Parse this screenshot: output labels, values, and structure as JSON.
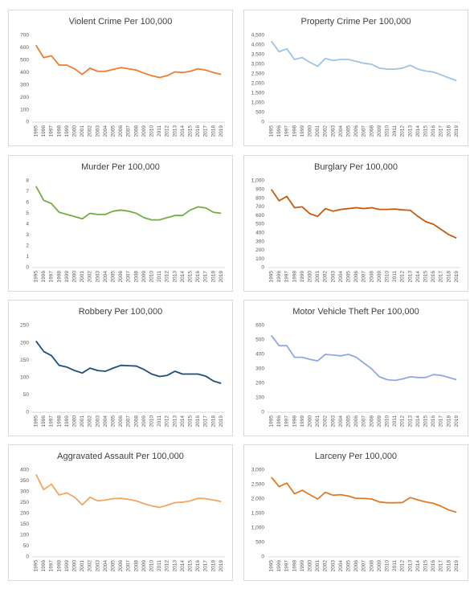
{
  "chart_data": [
    {
      "type": "line",
      "title": "Violent Crime Per 100,000",
      "color": "#ed7d31",
      "categories": [
        "1995",
        "1996",
        "1997",
        "1998",
        "1999",
        "2000",
        "2001",
        "2002",
        "2003",
        "2004",
        "2005",
        "2006",
        "2007",
        "2008",
        "2009",
        "2010",
        "2011",
        "2012",
        "2013",
        "2014",
        "2015",
        "2016",
        "2017",
        "2018",
        "2019"
      ],
      "values": [
        620,
        520,
        535,
        460,
        460,
        430,
        385,
        435,
        410,
        410,
        425,
        440,
        430,
        420,
        395,
        375,
        360,
        375,
        405,
        400,
        410,
        430,
        420,
        400,
        385
      ],
      "ylim": [
        0,
        700
      ],
      "yticks": [
        0,
        100,
        200,
        300,
        400,
        500,
        600,
        700
      ],
      "grid": false
    },
    {
      "type": "line",
      "title": "Property Crime Per 100,000",
      "color": "#9dc3e6",
      "categories": [
        "1995",
        "1996",
        "1997",
        "1998",
        "1999",
        "2000",
        "2001",
        "2002",
        "2003",
        "2004",
        "2005",
        "2006",
        "2007",
        "2008",
        "2009",
        "2010",
        "2011",
        "2012",
        "2013",
        "2014",
        "2015",
        "2016",
        "2017",
        "2018",
        "2019"
      ],
      "values": [
        4200,
        3650,
        3800,
        3250,
        3350,
        3100,
        2900,
        3300,
        3200,
        3250,
        3250,
        3150,
        3050,
        3000,
        2800,
        2750,
        2750,
        2800,
        2950,
        2750,
        2650,
        2600,
        2450,
        2300,
        2150
      ],
      "ylim": [
        0,
        4500
      ],
      "yticks": [
        0,
        500,
        {
          "value": 1000,
          "label": "1,000"
        },
        {
          "value": 1500,
          "label": "1,500"
        },
        {
          "value": 2000,
          "label": "2,000"
        },
        {
          "value": 2500,
          "label": "2,500"
        },
        {
          "value": 3000,
          "label": "3,000"
        },
        {
          "value": 3500,
          "label": "3,500"
        },
        {
          "value": 4000,
          "label": "4,000"
        },
        {
          "value": 4500,
          "label": "4,500"
        }
      ],
      "grid": false
    },
    {
      "type": "line",
      "title": "Murder Per 100,000",
      "color": "#70ad47",
      "categories": [
        "1995",
        "1996",
        "1997",
        "1998",
        "1999",
        "2000",
        "2001",
        "2002",
        "2003",
        "2004",
        "2005",
        "2006",
        "2007",
        "2008",
        "2009",
        "2010",
        "2011",
        "2012",
        "2013",
        "2014",
        "2015",
        "2016",
        "2017",
        "2018",
        "2019"
      ],
      "values": [
        7.5,
        6.2,
        5.9,
        5.1,
        4.9,
        4.7,
        4.5,
        5.0,
        4.9,
        4.9,
        5.2,
        5.3,
        5.2,
        5.0,
        4.6,
        4.4,
        4.4,
        4.6,
        4.8,
        4.8,
        5.3,
        5.6,
        5.5,
        5.1,
        5.0
      ],
      "ylim": [
        0,
        8
      ],
      "yticks": [
        0,
        1,
        2,
        3,
        4,
        5,
        6,
        7,
        8
      ],
      "grid": false
    },
    {
      "type": "line",
      "title": "Burglary Per 100,000",
      "color": "#c55a11",
      "categories": [
        "1995",
        "1996",
        "1997",
        "1998",
        "1999",
        "2000",
        "2001",
        "2002",
        "2003",
        "2004",
        "2005",
        "2006",
        "2007",
        "2008",
        "2009",
        "2010",
        "2011",
        "2012",
        "2013",
        "2014",
        "2015",
        "2016",
        "2017",
        "2018",
        "2019"
      ],
      "values": [
        900,
        770,
        820,
        690,
        700,
        620,
        590,
        680,
        650,
        670,
        680,
        690,
        680,
        690,
        670,
        670,
        675,
        665,
        660,
        590,
        530,
        500,
        440,
        380,
        340
      ],
      "ylim": [
        0,
        1000
      ],
      "yticks": [
        0,
        100,
        200,
        300,
        400,
        500,
        600,
        700,
        800,
        900,
        {
          "value": 1000,
          "label": "1,000"
        }
      ],
      "grid": false
    },
    {
      "type": "line",
      "title": "Robbery Per 100,000",
      "color": "#1f4e79",
      "categories": [
        "1995",
        "1996",
        "1997",
        "1998",
        "1999",
        "2000",
        "2001",
        "2002",
        "2003",
        "2004",
        "2005",
        "2006",
        "2007",
        "2008",
        "2009",
        "2010",
        "2011",
        "2012",
        "2013",
        "2014",
        "2015",
        "2016",
        "2017",
        "2018",
        "2019"
      ],
      "values": [
        205,
        175,
        163,
        135,
        130,
        120,
        113,
        127,
        120,
        118,
        127,
        135,
        134,
        133,
        123,
        110,
        103,
        106,
        118,
        110,
        110,
        110,
        104,
        90,
        83
      ],
      "ylim": [
        0,
        250
      ],
      "yticks": [
        0,
        50,
        100,
        150,
        200,
        250
      ],
      "grid": false
    },
    {
      "type": "line",
      "title": "Motor Vehicle Theft Per 100,000",
      "color": "#8faadc",
      "categories": [
        "1995",
        "1996",
        "1997",
        "1998",
        "1999",
        "2000",
        "2001",
        "2002",
        "2003",
        "2004",
        "2005",
        "2006",
        "2007",
        "2008",
        "2009",
        "2010",
        "2011",
        "2012",
        "2013",
        "2014",
        "2015",
        "2016",
        "2017",
        "2018",
        "2019"
      ],
      "values": [
        530,
        460,
        460,
        380,
        380,
        365,
        355,
        400,
        395,
        390,
        400,
        380,
        340,
        300,
        245,
        225,
        220,
        230,
        245,
        240,
        240,
        260,
        255,
        240,
        225
      ],
      "ylim": [
        0,
        600
      ],
      "yticks": [
        0,
        100,
        200,
        300,
        400,
        500,
        600
      ],
      "grid": false
    },
    {
      "type": "line",
      "title": "Aggravated Assault Per 100,000",
      "color": "#f4a460",
      "categories": [
        "1995",
        "1996",
        "1997",
        "1998",
        "1999",
        "2000",
        "2001",
        "2002",
        "2003",
        "2004",
        "2005",
        "2006",
        "2007",
        "2008",
        "2009",
        "2010",
        "2011",
        "2012",
        "2013",
        "2014",
        "2015",
        "2016",
        "2017",
        "2018",
        "2019"
      ],
      "values": [
        380,
        310,
        335,
        285,
        295,
        275,
        240,
        275,
        258,
        262,
        268,
        270,
        265,
        258,
        245,
        235,
        228,
        238,
        250,
        252,
        258,
        270,
        268,
        262,
        255
      ],
      "ylim": [
        0,
        400
      ],
      "yticks": [
        0,
        50,
        100,
        150,
        200,
        250,
        300,
        350,
        400
      ],
      "grid": false
    },
    {
      "type": "line",
      "title": "Larceny Per 100,000",
      "color": "#e07b25",
      "categories": [
        "1995",
        "1996",
        "1997",
        "1998",
        "1999",
        "2000",
        "2001",
        "2002",
        "2003",
        "2004",
        "2005",
        "2006",
        "2007",
        "2008",
        "2009",
        "2010",
        "2011",
        "2012",
        "2013",
        "2014",
        "2015",
        "2016",
        "2017",
        "2018",
        "2019"
      ],
      "values": [
        2750,
        2430,
        2550,
        2180,
        2300,
        2150,
        2000,
        2230,
        2130,
        2150,
        2100,
        2020,
        2020,
        2000,
        1900,
        1870,
        1870,
        1880,
        2050,
        1970,
        1900,
        1850,
        1750,
        1620,
        1540
      ],
      "ylim": [
        0,
        3000
      ],
      "yticks": [
        0,
        500,
        {
          "value": 1000,
          "label": "1,000"
        },
        {
          "value": 1500,
          "label": "1,500"
        },
        {
          "value": 2000,
          "label": "2,000"
        },
        {
          "value": 2500,
          "label": "2,500"
        },
        {
          "value": 3000,
          "label": "3,000"
        }
      ],
      "grid": false
    }
  ]
}
